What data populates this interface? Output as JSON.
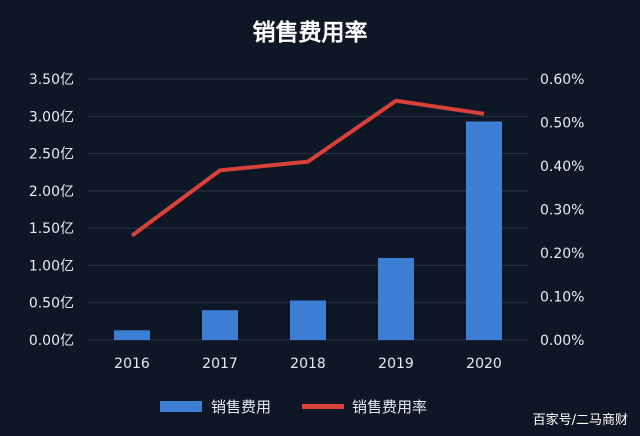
{
  "chart_data": {
    "type": "bar",
    "title": "销售费用率",
    "categories": [
      "2016",
      "2017",
      "2018",
      "2019",
      "2020"
    ],
    "series": [
      {
        "name": "销售费用",
        "type": "bar",
        "axis": "left",
        "color": "#3e7fd6",
        "values": [
          0.13,
          0.4,
          0.53,
          1.1,
          2.93
        ]
      },
      {
        "name": "销售费用率",
        "type": "line",
        "axis": "right",
        "color": "#d9403a",
        "values": [
          0.24,
          0.39,
          0.41,
          0.55,
          0.52
        ]
      }
    ],
    "y_left": {
      "ylim": [
        0,
        3.5
      ],
      "ticks": [
        "0.00亿",
        "0.50亿",
        "1.00亿",
        "1.50亿",
        "2.00亿",
        "2.50亿",
        "3.00亿",
        "3.50亿"
      ]
    },
    "y_right": {
      "ylim": [
        0,
        0.6
      ],
      "ticks": [
        "0.00%",
        "0.10%",
        "0.20%",
        "0.30%",
        "0.40%",
        "0.50%",
        "0.60%"
      ]
    },
    "grid": true,
    "legend_position": "bottom"
  },
  "watermark": "百家号/二马商财"
}
